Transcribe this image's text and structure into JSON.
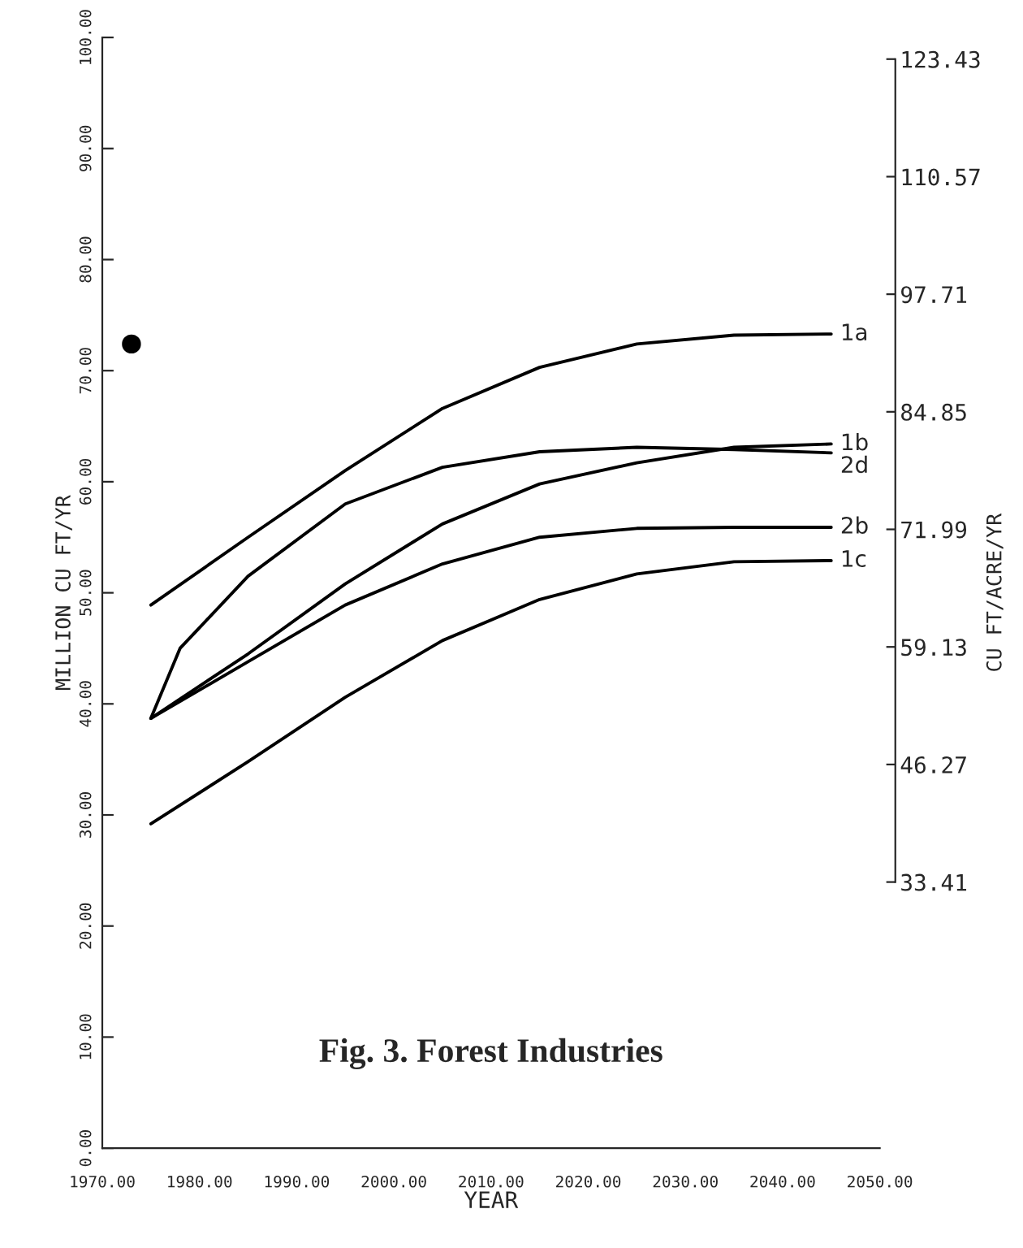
{
  "chart_data": {
    "type": "line",
    "title": "Fig. 3. Forest Industries",
    "xlabel": "YEAR",
    "ylabel": "MILLION CU FT/YR",
    "y2label": "CU FT/ACRE/YR",
    "xlim": [
      1970,
      2050
    ],
    "xticks": [
      {
        "value": 1970,
        "label": "1970.00"
      },
      {
        "value": 1980,
        "label": "1980.00"
      },
      {
        "value": 1990,
        "label": "1990.00"
      },
      {
        "value": 2000,
        "label": "2000.00"
      },
      {
        "value": 2010,
        "label": "2010.00"
      },
      {
        "value": 2020,
        "label": "2020.00"
      },
      {
        "value": 2030,
        "label": "2030.00"
      },
      {
        "value": 2040,
        "label": "2040.00"
      },
      {
        "value": 2050,
        "label": "2050.00"
      }
    ],
    "ylim": [
      0,
      100
    ],
    "yticks": [
      {
        "value": 0,
        "label": "0.00"
      },
      {
        "value": 10,
        "label": "10.00"
      },
      {
        "value": 20,
        "label": "20.00"
      },
      {
        "value": 30,
        "label": "30.00"
      },
      {
        "value": 40,
        "label": "40.00"
      },
      {
        "value": 50,
        "label": "50.00"
      },
      {
        "value": 60,
        "label": "60.00"
      },
      {
        "value": 70,
        "label": "70.00"
      },
      {
        "value": 80,
        "label": "80.00"
      },
      {
        "value": 90,
        "label": "90.00"
      },
      {
        "value": 100,
        "label": "100.00"
      }
    ],
    "y2lim": [
      4.3,
      125.8
    ],
    "y2ticks": [
      33.41,
      46.27,
      59.13,
      71.99,
      84.85,
      97.71,
      110.57,
      123.43
    ],
    "grid": false,
    "legend": false,
    "line_style": "solid",
    "marker": "none",
    "series": [
      {
        "name": "1a",
        "color": "#000000",
        "x": [
          1975,
          1985,
          1995,
          2005,
          2015,
          2025,
          2035,
          2045
        ],
        "values": [
          48.9,
          55.0,
          61.0,
          66.6,
          70.3,
          72.4,
          73.2,
          73.3
        ]
      },
      {
        "name": "1b",
        "color": "#000000",
        "x": [
          1975,
          1985,
          1995,
          2005,
          2015,
          2025,
          2035,
          2045
        ],
        "values": [
          38.7,
          44.5,
          50.8,
          56.2,
          59.8,
          61.7,
          63.1,
          63.4
        ]
      },
      {
        "name": "2d",
        "color": "#000000",
        "x": [
          1975,
          1978,
          1985,
          1995,
          2005,
          2015,
          2025,
          2035,
          2045
        ],
        "values": [
          38.7,
          45.0,
          51.5,
          58.0,
          61.3,
          62.7,
          63.1,
          62.9,
          62.6
        ]
      },
      {
        "name": "2b",
        "color": "#000000",
        "x": [
          1975,
          1985,
          1995,
          2005,
          2015,
          2025,
          2035,
          2045
        ],
        "values": [
          38.7,
          43.8,
          48.9,
          52.6,
          55.0,
          55.8,
          55.9,
          55.9
        ]
      },
      {
        "name": "1c",
        "color": "#000000",
        "x": [
          1975,
          1985,
          1995,
          2005,
          2015,
          2025,
          2035,
          2045
        ],
        "values": [
          29.2,
          34.8,
          40.6,
          45.7,
          49.4,
          51.7,
          52.8,
          52.9
        ]
      },
      {
        "type": "scatter",
        "marker": "circle",
        "color": "#000000",
        "x": [
          1973
        ],
        "values": [
          72.4
        ]
      }
    ]
  }
}
